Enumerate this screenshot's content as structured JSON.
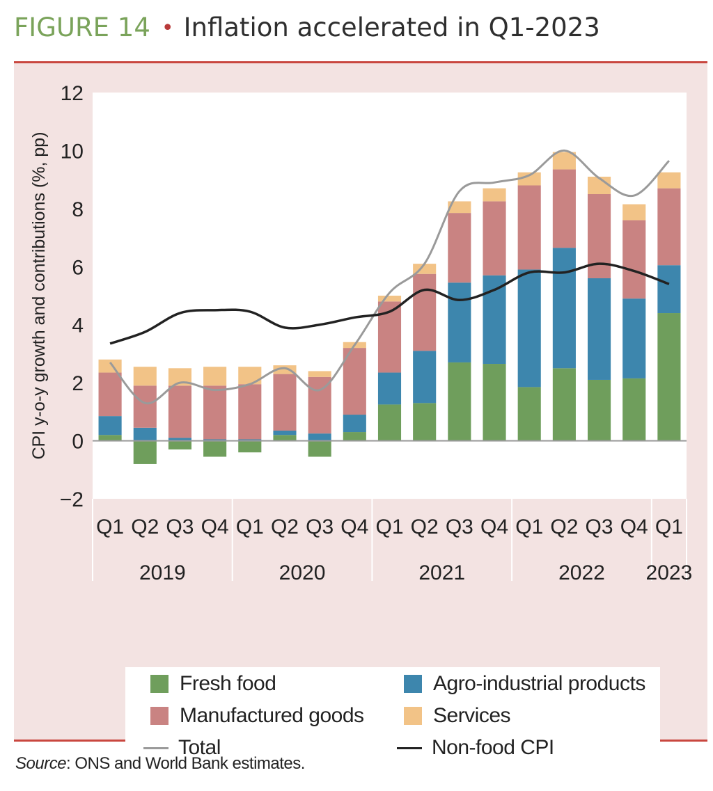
{
  "figure": {
    "label": "FIGURE 14",
    "separator": "•",
    "title": "Inflation accelerated in Q1-2023"
  },
  "source": {
    "label": "Source",
    "text": ": ONS and World Bank estimates."
  },
  "colors": {
    "fresh_food": "#6f9e5c",
    "agro": "#3d86ad",
    "manufactured": "#c98382",
    "services": "#f2c387",
    "total": "#9a9a9a",
    "nonfood": "#222222",
    "panel": "#f3e3e2",
    "rule": "#c9473f"
  },
  "legend": {
    "fresh_food": "Fresh food",
    "agro": "Agro-industrial products",
    "manufactured": "Manufactured goods",
    "services": "Services",
    "total": "Total",
    "nonfood": "Non-food CPI"
  },
  "chart_data": {
    "type": "bar",
    "title": "Inflation accelerated in Q1-2023",
    "ylabel": "CPI y-o-y growth and contributions (%, pp)",
    "xlabel": "",
    "ylim": [
      -2,
      12
    ],
    "yticks": [
      -2,
      0,
      2,
      4,
      6,
      8,
      10,
      12
    ],
    "ytick_labels": [
      "−2",
      "0",
      "2",
      "4",
      "6",
      "8",
      "10",
      "12"
    ],
    "categories": [
      "Q1",
      "Q2",
      "Q3",
      "Q4",
      "Q1",
      "Q2",
      "Q3",
      "Q4",
      "Q1",
      "Q2",
      "Q3",
      "Q4",
      "Q1",
      "Q2",
      "Q3",
      "Q4",
      "Q1"
    ],
    "years": [
      {
        "label": "2019",
        "span": [
          0,
          3
        ]
      },
      {
        "label": "2020",
        "span": [
          4,
          7
        ]
      },
      {
        "label": "2021",
        "span": [
          8,
          11
        ]
      },
      {
        "label": "2022",
        "span": [
          12,
          15
        ]
      },
      {
        "label": "2023",
        "span": [
          16,
          16
        ]
      }
    ],
    "series": [
      {
        "name": "Fresh food",
        "kind": "bar",
        "values": [
          0.2,
          -0.8,
          -0.3,
          -0.55,
          -0.4,
          0.2,
          -0.55,
          0.3,
          1.25,
          1.3,
          2.7,
          2.65,
          1.85,
          2.5,
          2.1,
          2.15,
          4.4
        ]
      },
      {
        "name": "Agro-industrial products",
        "kind": "bar",
        "values": [
          0.65,
          0.45,
          0.1,
          0.05,
          0.05,
          0.15,
          0.25,
          0.6,
          1.1,
          1.8,
          2.75,
          3.05,
          4.05,
          4.15,
          3.5,
          2.75,
          1.65
        ]
      },
      {
        "name": "Manufactured goods",
        "kind": "bar",
        "values": [
          1.5,
          1.45,
          1.8,
          1.85,
          1.9,
          1.95,
          1.95,
          2.3,
          2.45,
          2.65,
          2.4,
          2.55,
          2.9,
          2.7,
          2.9,
          2.7,
          2.65
        ]
      },
      {
        "name": "Services",
        "kind": "bar",
        "values": [
          0.45,
          0.65,
          0.6,
          0.65,
          0.6,
          0.3,
          0.2,
          0.2,
          0.2,
          0.35,
          0.4,
          0.45,
          0.45,
          0.6,
          0.6,
          0.55,
          0.55
        ]
      },
      {
        "name": "Total",
        "kind": "line",
        "values": [
          2.7,
          1.3,
          2.0,
          1.75,
          1.95,
          2.5,
          1.75,
          3.3,
          5.1,
          6.1,
          8.6,
          8.9,
          9.15,
          10.0,
          9.05,
          8.45,
          9.65
        ]
      },
      {
        "name": "Non-food CPI",
        "kind": "line",
        "values": [
          3.35,
          3.75,
          4.4,
          4.5,
          4.45,
          3.9,
          4.0,
          4.25,
          4.45,
          5.2,
          4.85,
          5.2,
          5.8,
          5.8,
          6.1,
          5.85,
          5.4
        ]
      }
    ]
  }
}
